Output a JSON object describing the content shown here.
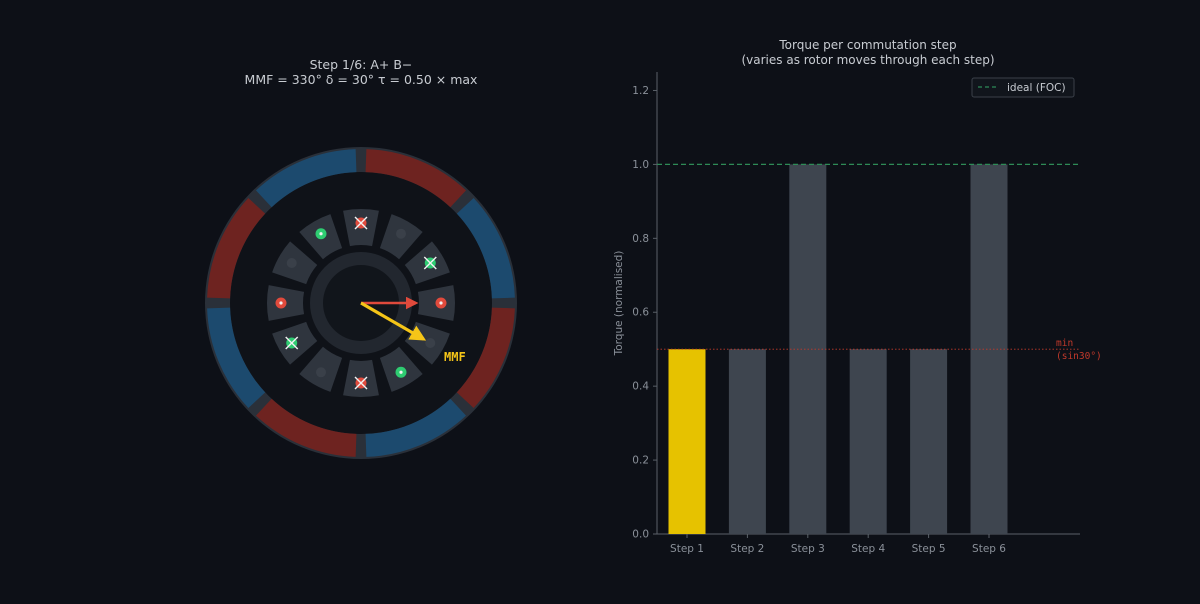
{
  "motor": {
    "title_line1": "Step 1/6:  A+  B−",
    "title_line2": "MMF = 330°   δ = 30°   τ = 0.50 × max",
    "mmf_label": "MMF",
    "colors": {
      "north_magnet": "#6e2320",
      "south_magnet": "#1c4a6e",
      "rotor_arrow": "#e04a3c",
      "mmf_arrow": "#f5c518",
      "current_in": "#e04a3c",
      "current_out": "#2ecc71",
      "coil_off": "#3a4049"
    },
    "coils": [
      {
        "phase_state": "current-in-x"
      },
      {
        "phase_state": "off"
      },
      {
        "phase_state": "current-out-x"
      },
      {
        "phase_state": "current-in-dot"
      },
      {
        "phase_state": "off"
      },
      {
        "phase_state": "current-out-dot"
      },
      {
        "phase_state": "current-in-x"
      },
      {
        "phase_state": "off"
      },
      {
        "phase_state": "current-out-x"
      },
      {
        "phase_state": "current-in-dot"
      },
      {
        "phase_state": "off"
      },
      {
        "phase_state": "current-out-dot"
      }
    ]
  },
  "chart_data": {
    "type": "bar",
    "title": "Torque per commutation step",
    "subtitle": "(varies as rotor moves through each step)",
    "xlabel": "",
    "ylabel": "Torque (normalised)",
    "categories": [
      "Step 1",
      "Step 2",
      "Step 3",
      "Step 4",
      "Step 5",
      "Step 6"
    ],
    "values": [
      0.5,
      0.5,
      1.0,
      0.5,
      0.5,
      1.0
    ],
    "highlight_index": 0,
    "highlight_color": "#e6c200",
    "bar_color": "#3e454f",
    "ylim": [
      0,
      1.25
    ],
    "yticks": [
      "0.0",
      "0.2",
      "0.4",
      "0.6",
      "0.8",
      "1.0",
      "1.2"
    ],
    "ideal_line": {
      "value": 1.0,
      "label": "ideal (FOC)",
      "color": "#2e8b57"
    },
    "min_line": {
      "value": 0.5,
      "label_line1": "min",
      "label_line2": "(sin30°)",
      "color": "#c0392b"
    },
    "legend_position": "top-right",
    "grid": false
  }
}
